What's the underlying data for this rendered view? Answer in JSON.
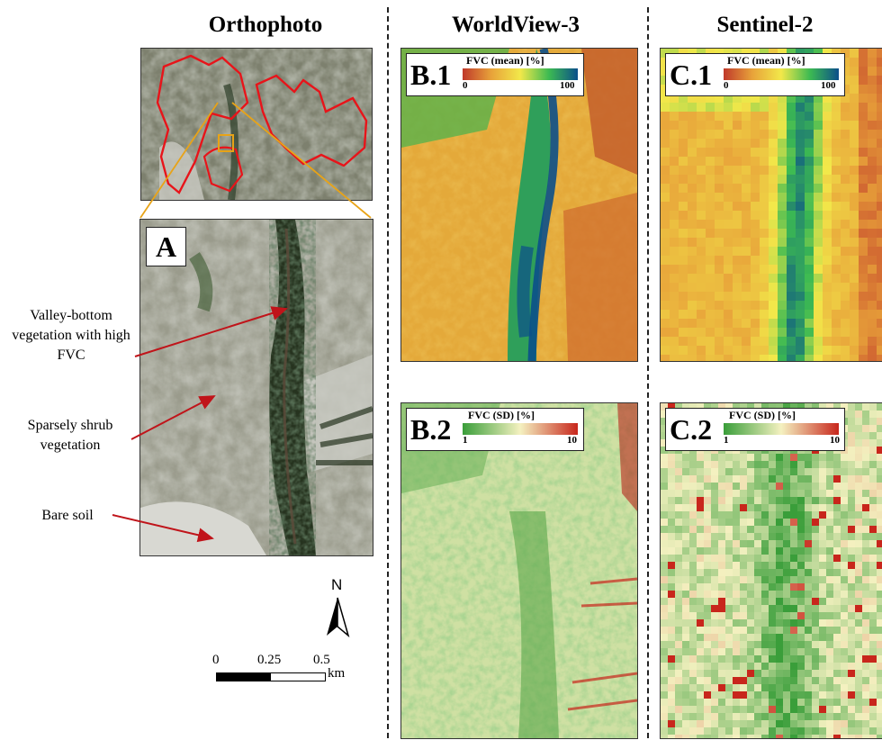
{
  "columns": {
    "ortho": "Orthophoto",
    "wv3": "WorldView-3",
    "s2": "Sentinel-2"
  },
  "panels": {
    "a": {
      "tag": "A"
    },
    "b1": {
      "tag": "B.1",
      "legend_title": "FVC (mean) [%]",
      "min": "0",
      "max": "100"
    },
    "b2": {
      "tag": "B.2",
      "legend_title": "FVC (SD) [%]",
      "min": "1",
      "max": "10"
    },
    "c1": {
      "tag": "C.1",
      "legend_title": "FVC (mean) [%]",
      "min": "0",
      "max": "100"
    },
    "c2": {
      "tag": "C.2",
      "legend_title": "FVC (SD) [%]",
      "min": "1",
      "max": "10"
    }
  },
  "annotations": {
    "valley": "Valley-bottom vegetation with high FVC",
    "shrub": "Sparsely shrub vegetation",
    "soil": "Bare soil"
  },
  "north_label": "N",
  "scale": {
    "t0": "0",
    "t1": "0.25",
    "t2": "0.5",
    "unit": "km"
  },
  "colors": {
    "mean_ramp": [
      "#c0392b",
      "#e8a33a",
      "#f2e84a",
      "#3cba52",
      "#0b4f8a"
    ],
    "sd_ramp": [
      "#3a9e3a",
      "#f4f1c0",
      "#c8261c"
    ],
    "boundary": "#e8141a",
    "zoom_box": "#e8a317"
  }
}
